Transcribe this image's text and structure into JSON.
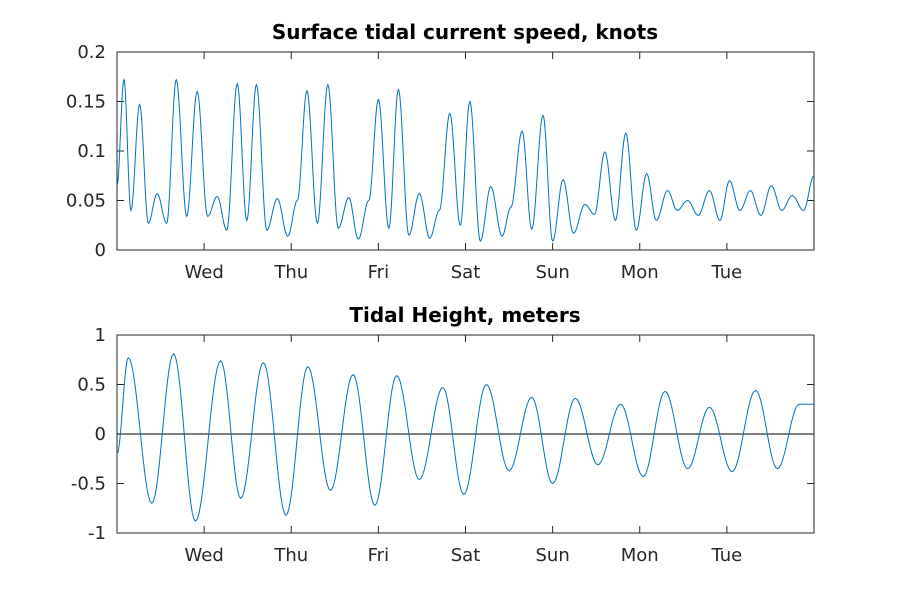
{
  "chart_data": [
    {
      "type": "line",
      "title": "Surface tidal current speed, knots",
      "xlabel": "",
      "ylabel": "",
      "ylim": [
        0,
        0.2
      ],
      "yticks": [
        0,
        0.05,
        0.1,
        0.15,
        0.2
      ],
      "ytick_labels": [
        "0",
        "0.05",
        "0.1",
        "0.15",
        "0.2"
      ],
      "xlim_days": [
        0,
        8
      ],
      "xticks_days": [
        1,
        2,
        3,
        4,
        5,
        6,
        7
      ],
      "xtick_labels": [
        "Wed",
        "Thu",
        "Fri",
        "Sat",
        "Sun",
        "Mon",
        "Tue"
      ],
      "grid": false,
      "series": [
        {
          "color": "#0072bd",
          "x_days": [
            0.0,
            0.08,
            0.16,
            0.26,
            0.36,
            0.46,
            0.57,
            0.68,
            0.8,
            0.92,
            1.04,
            1.15,
            1.26,
            1.38,
            1.49,
            1.6,
            1.72,
            1.84,
            1.96,
            2.07,
            2.18,
            2.3,
            2.42,
            2.54,
            2.66,
            2.77,
            2.89,
            3.0,
            3.12,
            3.23,
            3.35,
            3.47,
            3.59,
            3.7,
            3.82,
            3.94,
            4.05,
            4.17,
            4.29,
            4.42,
            4.52,
            4.65,
            4.76,
            4.89,
            5.0,
            5.12,
            5.24,
            5.37,
            5.48,
            5.6,
            5.72,
            5.84,
            5.96,
            6.08,
            6.19,
            6.32,
            6.43,
            6.55,
            6.67,
            6.8,
            6.92,
            7.03,
            7.15,
            7.27,
            7.39,
            7.51,
            7.63,
            7.75,
            7.88,
            8.0
          ],
          "values": [
            0.065,
            0.172,
            0.04,
            0.147,
            0.027,
            0.057,
            0.027,
            0.172,
            0.034,
            0.16,
            0.034,
            0.054,
            0.02,
            0.168,
            0.03,
            0.167,
            0.02,
            0.052,
            0.014,
            0.05,
            0.161,
            0.027,
            0.167,
            0.022,
            0.053,
            0.011,
            0.05,
            0.152,
            0.022,
            0.162,
            0.015,
            0.057,
            0.012,
            0.04,
            0.138,
            0.025,
            0.15,
            0.009,
            0.064,
            0.014,
            0.043,
            0.12,
            0.021,
            0.136,
            0.009,
            0.071,
            0.017,
            0.046,
            0.036,
            0.099,
            0.03,
            0.118,
            0.02,
            0.077,
            0.03,
            0.06,
            0.04,
            0.05,
            0.035,
            0.06,
            0.03,
            0.07,
            0.04,
            0.06,
            0.035,
            0.065,
            0.04,
            0.055,
            0.04,
            0.075
          ]
        }
      ]
    },
    {
      "type": "line",
      "title": "Tidal Height, meters",
      "xlabel": "",
      "ylabel": "",
      "ylim": [
        -1,
        1
      ],
      "yticks": [
        -1,
        -0.5,
        0,
        0.5,
        1
      ],
      "ytick_labels": [
        "-1",
        "-0.5",
        "0",
        "0.5",
        "1"
      ],
      "xlim_days": [
        0,
        8
      ],
      "xticks_days": [
        1,
        2,
        3,
        4,
        5,
        6,
        7
      ],
      "xtick_labels": [
        "Wed",
        "Thu",
        "Fri",
        "Sat",
        "Sun",
        "Mon",
        "Tue"
      ],
      "grid": false,
      "zero_line": true,
      "series": [
        {
          "color": "#0072bd",
          "x_days": [
            0.0,
            0.13,
            0.4,
            0.65,
            0.9,
            1.19,
            1.42,
            1.68,
            1.94,
            2.19,
            2.45,
            2.71,
            2.96,
            3.21,
            3.47,
            3.74,
            3.98,
            4.24,
            4.5,
            4.76,
            5.0,
            5.26,
            5.52,
            5.78,
            6.04,
            6.29,
            6.55,
            6.8,
            7.06,
            7.33,
            7.58,
            7.83,
            8.0
          ],
          "values": [
            -0.2,
            0.77,
            -0.7,
            0.81,
            -0.88,
            0.74,
            -0.65,
            0.72,
            -0.82,
            0.68,
            -0.57,
            0.6,
            -0.72,
            0.59,
            -0.46,
            0.47,
            -0.61,
            0.5,
            -0.37,
            0.37,
            -0.5,
            0.36,
            -0.31,
            0.3,
            -0.43,
            0.43,
            -0.35,
            0.27,
            -0.38,
            0.44,
            -0.35,
            0.3,
            0.3
          ]
        }
      ]
    }
  ]
}
